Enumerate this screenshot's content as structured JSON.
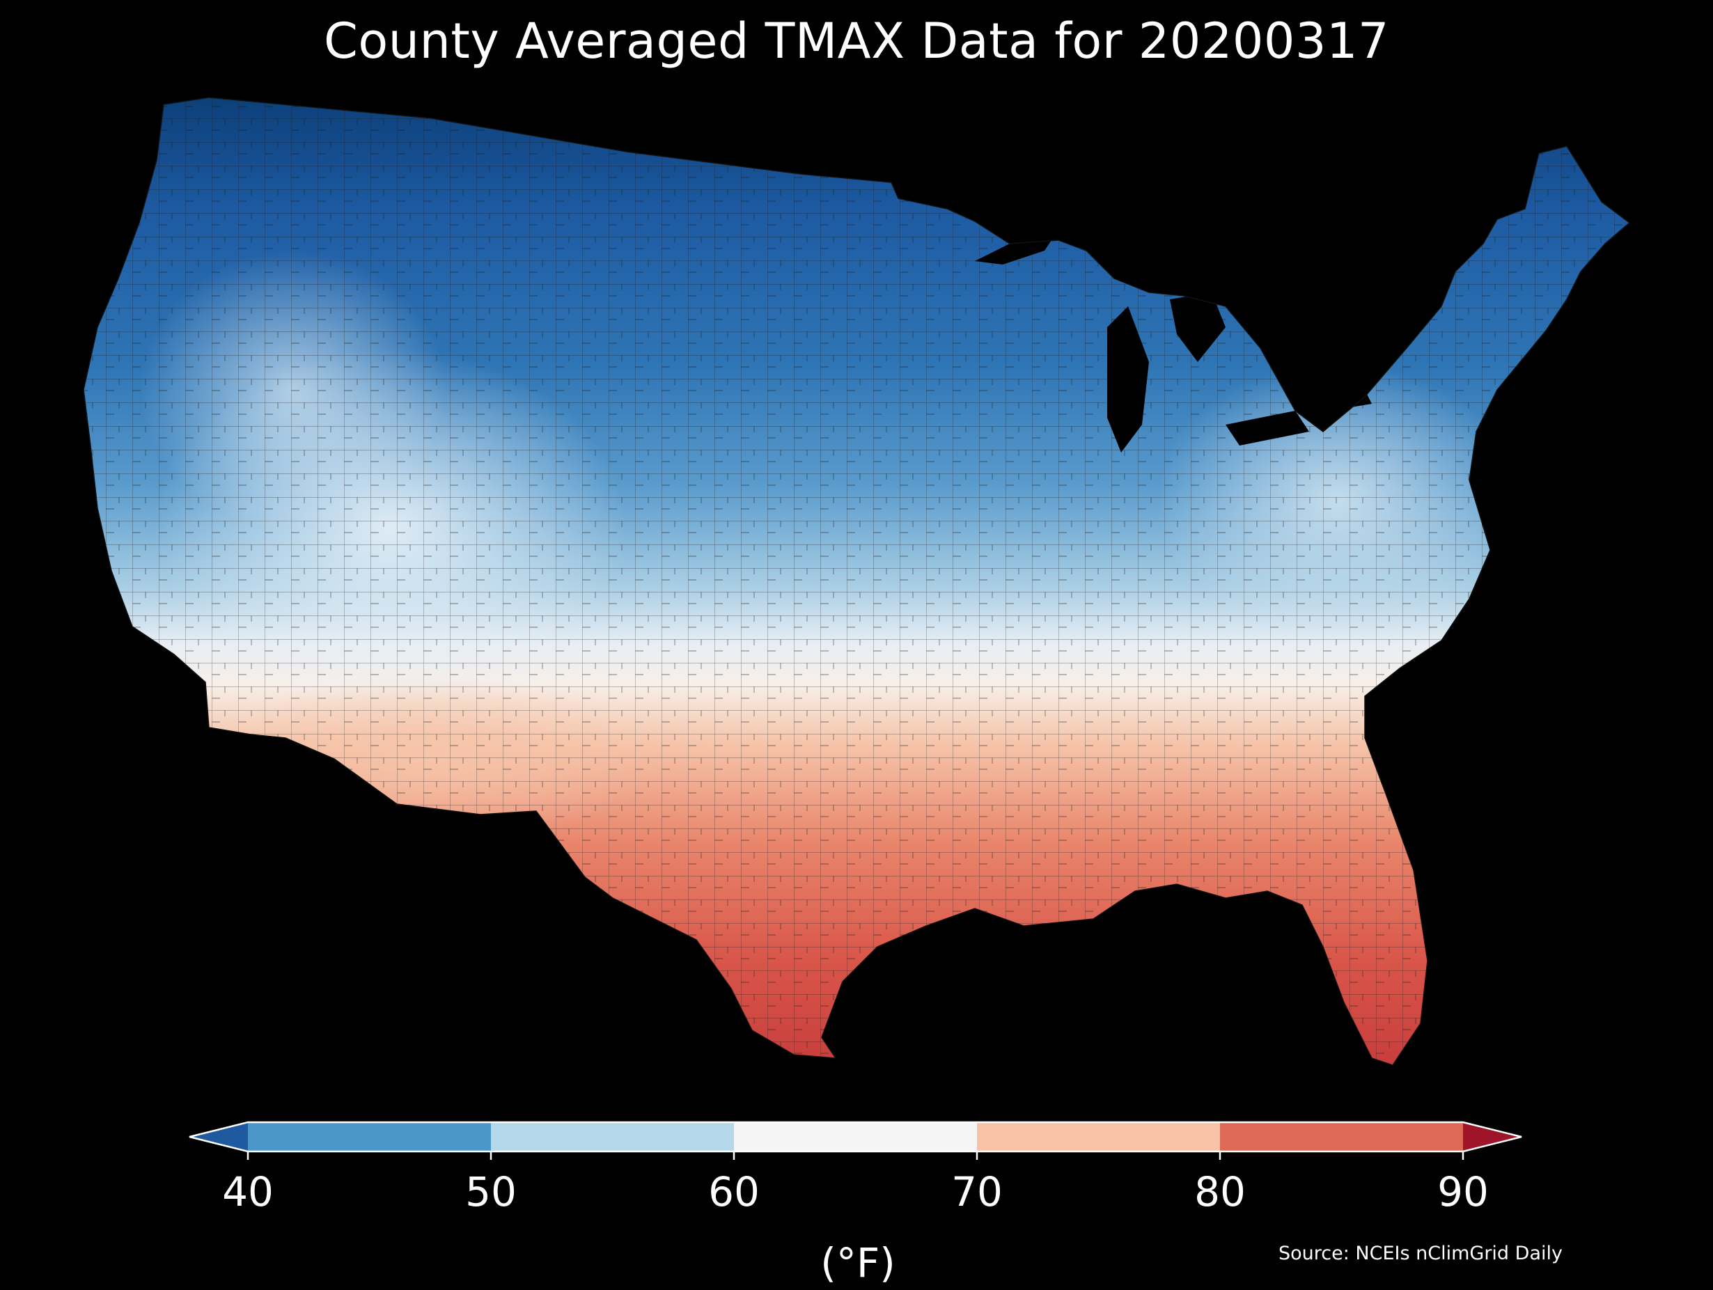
{
  "title": "County Averaged TMAX Data for 20200317",
  "colorbar": {
    "units": "(°F)",
    "ticks": [
      "40",
      "50",
      "60",
      "70",
      "80",
      "90"
    ],
    "bins": [
      {
        "from": null,
        "to": 40,
        "color": "#1f5aa0"
      },
      {
        "from": 40,
        "to": 50,
        "color": "#4a98c9"
      },
      {
        "from": 50,
        "to": 60,
        "color": "#b4d7ea"
      },
      {
        "from": 60,
        "to": 70,
        "color": "#f5f5f5"
      },
      {
        "from": 70,
        "to": 80,
        "color": "#f8c2a6"
      },
      {
        "from": 80,
        "to": 90,
        "color": "#de6a56"
      },
      {
        "from": 90,
        "to": null,
        "color": "#9e1428"
      }
    ]
  },
  "source": "Source: NCEIs nClimGrid Daily",
  "colors": {
    "background": "#000000",
    "county_border": "#222222"
  }
}
